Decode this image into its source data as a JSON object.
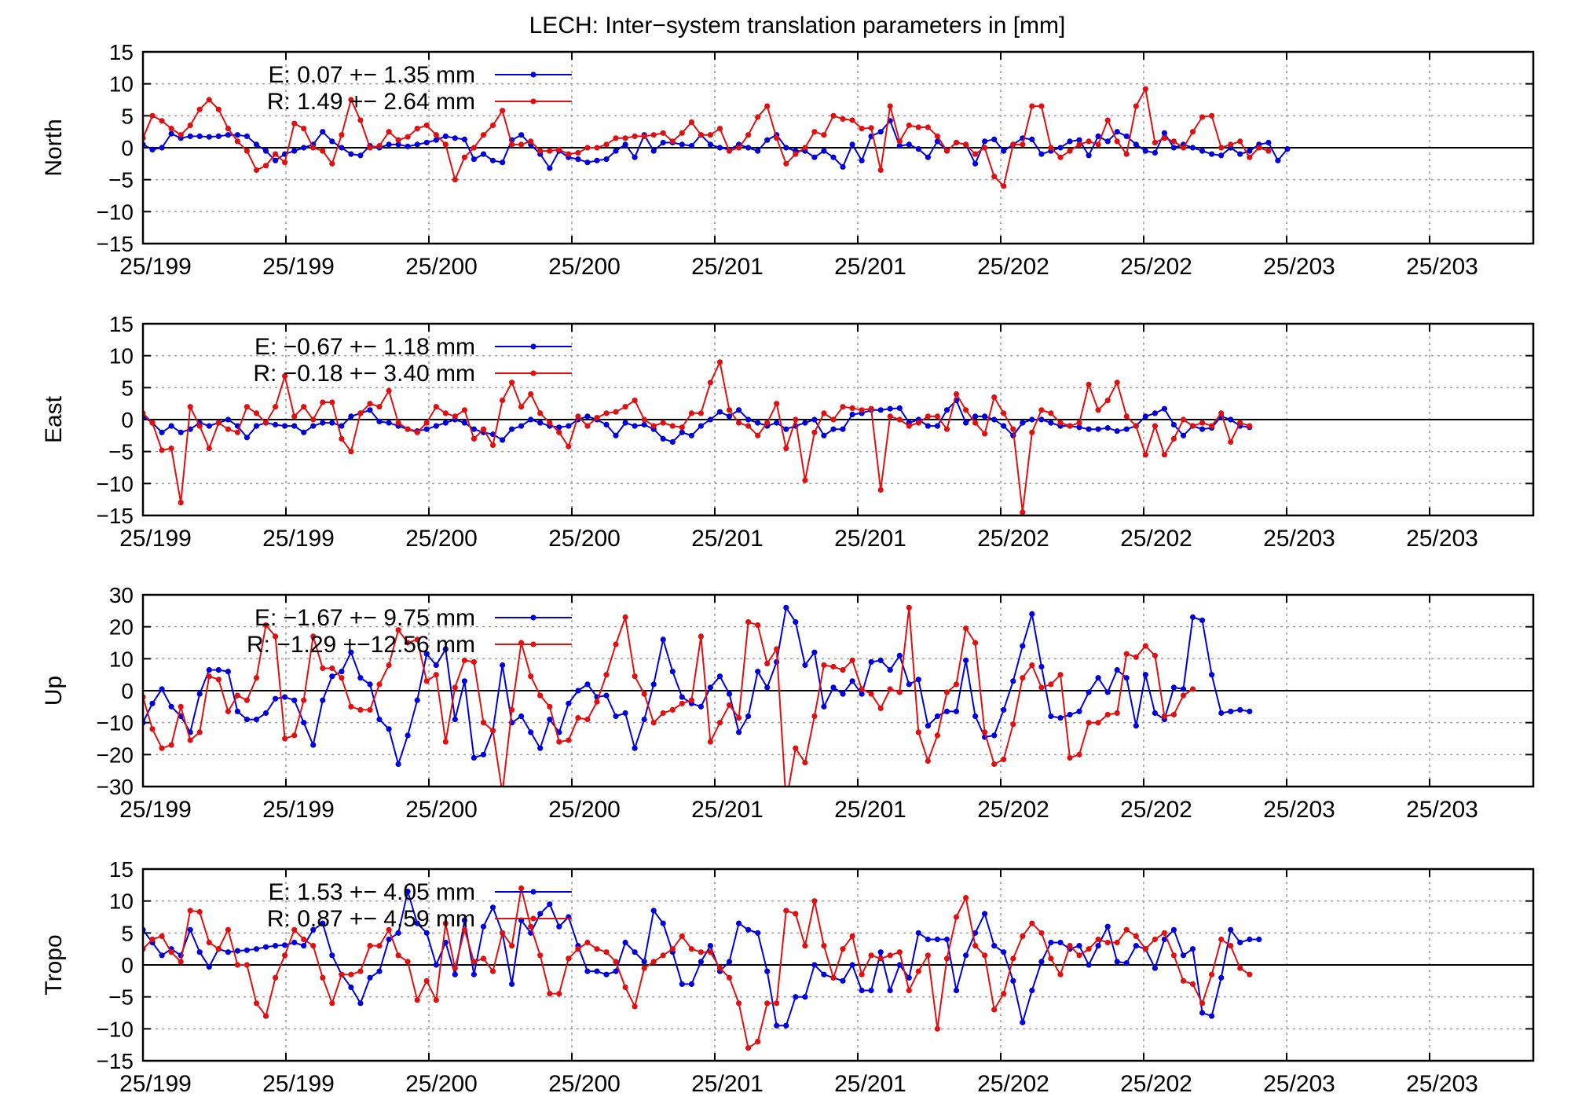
{
  "figure": {
    "title": "LECH: Inter−system translation parameters in [mm]"
  },
  "chart_data": [
    {
      "type": "line",
      "ylabel": "North",
      "ylim": [
        -15,
        15
      ],
      "yticks": [
        "15",
        "10",
        "5",
        "0",
        "−5",
        "−10",
        "−15"
      ],
      "xlim": [
        0,
        147
      ],
      "xtick_labels": [
        "25/199",
        "25/199",
        "25/200",
        "25/200",
        "25/201",
        "25/201",
        "25/202",
        "25/202",
        "25/203",
        "25/203"
      ],
      "grid": true,
      "legend": "top-left",
      "series": [
        {
          "name": "E:   0.07 +− 1.35 mm",
          "color": "#0000dd",
          "values": [
            0.5,
            -0.3,
            0,
            2.2,
            1.5,
            1.8,
            1.8,
            1.7,
            1.8,
            2,
            2,
            1.8,
            0.5,
            -0.5,
            -2,
            -1,
            -0.5,
            0,
            0.5,
            2.5,
            1,
            0,
            -1,
            -1.2,
            0.3,
            0,
            0.5,
            0.5,
            0.2,
            0.5,
            0.8,
            1.2,
            1.8,
            1.5,
            1.3,
            -1.8,
            -1,
            -2,
            -2.3,
            1.2,
            2,
            0.5,
            -1,
            -3.2,
            -0.5,
            -1.5,
            -1.8,
            -2.3,
            -2,
            -1.8,
            -0.5,
            0.5,
            -1.5,
            2,
            -0.5,
            0.8,
            0.8,
            0.5,
            0.3,
            2,
            0.5,
            0,
            -0.3,
            0.5,
            0,
            -0.5,
            1.2,
            2,
            0,
            -0.5,
            -0.5,
            -1.5,
            -0.5,
            -1.5,
            -3,
            0.5,
            -2,
            1.8,
            2.5,
            4.2,
            0.3,
            0.5,
            -0.2,
            -1.5,
            1,
            -0.5,
            0.8,
            0.5,
            -2.5,
            1,
            1.3,
            -0.5,
            0.5,
            1.5,
            1.3,
            -1,
            -0.5,
            0,
            1,
            1.2,
            -1.2,
            1.8,
            1,
            2.5,
            1.8,
            0.5,
            -0.5,
            -0.8,
            2.3,
            0,
            0.5,
            0,
            -0.5,
            -1,
            -1.2,
            0,
            -1,
            -0.5,
            0.5,
            0.8,
            -2,
            -0.2
          ]
        },
        {
          "name": "R:   1.49 +− 2.64 mm",
          "color": "#e01010",
          "values": [
            1.5,
            5,
            4.2,
            3,
            2,
            3.5,
            6,
            7.5,
            6,
            3,
            1,
            -0.5,
            -3.5,
            -2.8,
            -1,
            -2.3,
            3.8,
            3,
            0,
            -0.5,
            -2.5,
            2,
            7.5,
            4.3,
            0,
            0.3,
            2.5,
            1.2,
            1.7,
            3,
            3.5,
            2,
            0.5,
            -5,
            -1.5,
            0,
            2,
            3.5,
            5.8,
            0.5,
            0.5,
            1,
            -0.5,
            -0.5,
            -0.3,
            -1,
            -0.8,
            0,
            0,
            0.5,
            1.5,
            1.5,
            1.8,
            1.8,
            2,
            2.3,
            1,
            2.3,
            4,
            2,
            2,
            3,
            -0.5,
            0,
            2,
            4.8,
            6.5,
            1.5,
            -2.5,
            -1,
            0,
            2.5,
            2,
            5,
            4.5,
            4.3,
            3,
            3.1,
            -3.5,
            6.5,
            1,
            3.5,
            3.2,
            3.2,
            1.8,
            -0.5,
            0.8,
            0.5,
            -1,
            0,
            -4.5,
            -6,
            0.5,
            0.5,
            6.5,
            6.5,
            0,
            -1.5,
            -0.5,
            0.5,
            1,
            0.5,
            4.3,
            1,
            -1,
            6.5,
            9.2,
            0.8,
            1.5,
            1,
            0,
            2.5,
            4.8,
            5,
            0,
            0.5,
            1,
            -1.5,
            0,
            -0.5
          ]
        }
      ]
    },
    {
      "type": "line",
      "ylabel": "East",
      "ylim": [
        -15,
        15
      ],
      "yticks": [
        "15",
        "10",
        "5",
        "0",
        "−5",
        "−10",
        "−15"
      ],
      "xlim": [
        0,
        147
      ],
      "xtick_labels": [
        "25/199",
        "25/199",
        "25/200",
        "25/200",
        "25/201",
        "25/201",
        "25/202",
        "25/202",
        "25/203",
        "25/203"
      ],
      "grid": true,
      "legend": "top-left",
      "series": [
        {
          "name": "E:  −0.67 +− 1.18 mm",
          "color": "#0000dd",
          "values": [
            0.5,
            -0.5,
            -2,
            -1,
            -2,
            -1.5,
            -0.5,
            -1,
            -0.5,
            0,
            -1,
            -2.8,
            -1,
            -0.5,
            -0.8,
            -1,
            -1,
            -2,
            -1,
            -0.5,
            -0.5,
            -1,
            0.5,
            1,
            1.5,
            -0.3,
            -0.5,
            -1,
            -1.5,
            -1.8,
            -1.5,
            -1,
            -0.5,
            0,
            -0.5,
            -1.5,
            -2,
            -2.3,
            -3.2,
            -1.5,
            -1,
            0,
            -0.5,
            -1,
            -1.2,
            -1,
            0,
            0.5,
            0,
            -0.8,
            -2.5,
            -0.5,
            -1,
            -0.8,
            -1.5,
            -3,
            -3.5,
            -2,
            -2.5,
            -1,
            0,
            1.2,
            0.5,
            1.5,
            0,
            -0.5,
            -1,
            -0.5,
            -1.5,
            -1,
            -0.5,
            0,
            -2.5,
            -1.5,
            -1.5,
            0.8,
            1,
            1.5,
            1.5,
            1.7,
            1.8,
            -0.5,
            0,
            -1,
            -1,
            1.5,
            3,
            -0.5,
            0.5,
            0.5,
            0,
            -1,
            -2.5,
            -0.5,
            0,
            0,
            -0.5,
            -1,
            -1,
            -1.2,
            -1.5,
            -1.5,
            -1.3,
            -1.8,
            -1.5,
            -1,
            0.5,
            1,
            1.7,
            -0.8,
            -2.5,
            -1,
            -1.5,
            -1.3,
            0.5,
            0,
            -1,
            -1.2
          ]
        },
        {
          "name": "R:  −0.18 +− 3.40 mm",
          "color": "#e01010",
          "values": [
            1,
            -0.5,
            -4.8,
            -4.5,
            -13,
            2,
            -1,
            -4.5,
            -0.5,
            -1.5,
            -2,
            2,
            1,
            -0.5,
            2,
            6.8,
            0.5,
            2,
            0,
            2.7,
            2.7,
            -3,
            -5,
            1,
            2.5,
            2,
            4.5,
            -0.5,
            -1.5,
            -2,
            -0.5,
            2,
            1,
            0.5,
            1.5,
            -3,
            -1.5,
            -4,
            3,
            5.8,
            2,
            4,
            1,
            -0.5,
            -2,
            -4.2,
            0.5,
            -1,
            0.3,
            1,
            1.2,
            2,
            3,
            0,
            -1,
            -0.5,
            -1,
            -1.2,
            1,
            1,
            5.8,
            9,
            1.5,
            -0.5,
            -1,
            -2.5,
            -0.5,
            2.5,
            -4.5,
            0,
            -9.5,
            -2,
            1,
            0,
            2,
            1.8,
            1.5,
            1.7,
            -11,
            0.5,
            0,
            -1,
            -0.5,
            0.5,
            0.5,
            -1.5,
            4,
            1.5,
            -0.5,
            -2.2,
            3.5,
            1,
            -1.5,
            -14.5,
            -2,
            1.5,
            1,
            -0.5,
            -1,
            -0.5,
            5.5,
            1.5,
            3,
            5.8,
            0.5,
            -1,
            -5.5,
            -1,
            -5.5,
            -3,
            0,
            -1,
            -0.5,
            -1,
            1,
            -3.5,
            -0.5,
            -1
          ]
        }
      ]
    },
    {
      "type": "line",
      "ylabel": "Up",
      "ylim": [
        -30,
        30
      ],
      "yticks": [
        "30",
        "20",
        "10",
        "0",
        "−10",
        "−20",
        "−30"
      ],
      "xlim": [
        0,
        147
      ],
      "xtick_labels": [
        "25/199",
        "25/199",
        "25/200",
        "25/200",
        "25/201",
        "25/201",
        "25/202",
        "25/202",
        "25/203",
        "25/203"
      ],
      "grid": true,
      "legend": "top-left",
      "series": [
        {
          "name": "E:  −1.67 +− 9.75 mm",
          "color": "#0000dd",
          "values": [
            -10,
            -4,
            0.5,
            -5,
            -8,
            -13,
            -1,
            6.5,
            6.5,
            6,
            -6.5,
            -9,
            -9,
            -7,
            -2.5,
            -2,
            -3,
            -10,
            -17,
            -3,
            4.5,
            6,
            12,
            4,
            2,
            -9,
            -12,
            -23,
            -14,
            -3,
            11.5,
            8,
            13,
            -9,
            3,
            -21,
            -20,
            -12.5,
            8,
            -10,
            -8,
            -13,
            -18,
            -9,
            -13,
            -4,
            0,
            2,
            -2,
            -1.5,
            -8,
            -7,
            -18,
            -9,
            2,
            16,
            6,
            -2,
            -4,
            -5,
            1,
            4.5,
            -1,
            -13,
            -8,
            6,
            1,
            9,
            26,
            21.5,
            8,
            12,
            -5,
            1,
            -1,
            3,
            -1,
            9,
            9.5,
            6.5,
            11,
            2,
            3.5,
            -11,
            -8,
            -6.5,
            -6.5,
            9.5,
            -8,
            -14.5,
            -14,
            -6,
            3,
            14,
            24,
            7.5,
            -8,
            -8.5,
            -7.5,
            -6.5,
            -0.5,
            4,
            -0.5,
            6.5,
            4,
            -11,
            5,
            -7,
            -9,
            1,
            0.5,
            23,
            22,
            5,
            -7,
            -6.5,
            -6,
            -6.5
          ]
        },
        {
          "name": "R:  −1.29 +−12.56 mm",
          "color": "#e01010",
          "values": [
            -2,
            -12,
            -18,
            -17,
            -5,
            -15.5,
            -13,
            4.5,
            3.5,
            -6.5,
            -1.5,
            -3,
            4,
            20.5,
            17,
            -15,
            -14,
            -3,
            17,
            7,
            7,
            4,
            -5,
            -6,
            -6,
            2,
            8,
            19,
            15,
            16,
            3,
            5,
            -16,
            1,
            9.5,
            9,
            -10,
            -12.5,
            -32,
            -6,
            15,
            4.5,
            -1.5,
            -5,
            -16,
            -15.5,
            -8.5,
            -9,
            -3.5,
            5,
            14.5,
            23,
            4.5,
            -1,
            -10,
            -7,
            -6,
            -4,
            -3,
            17,
            -16,
            -10,
            -4.5,
            -8.5,
            21.5,
            20.5,
            8.5,
            13,
            -35,
            -18,
            -22.5,
            -8,
            8,
            7.5,
            6.5,
            9.5,
            0.5,
            -1,
            -5.5,
            0.5,
            -0.5,
            26,
            -13,
            -22,
            -14,
            -0.5,
            2,
            19.5,
            15,
            -13,
            -23,
            -21.5,
            -10.5,
            4,
            8,
            1,
            2,
            5,
            -21,
            -20,
            -10,
            -10,
            -7.5,
            -7,
            11.5,
            10.5,
            14,
            11,
            -8,
            -7.5,
            -1.5,
            0.5
          ]
        }
      ]
    },
    {
      "type": "line",
      "ylabel": "Tropo",
      "ylim": [
        -15,
        15
      ],
      "yticks": [
        "15",
        "10",
        "5",
        "0",
        "−5",
        "−10",
        "−15"
      ],
      "xlim": [
        0,
        147
      ],
      "xtick_labels": [
        "25/199",
        "25/199",
        "25/200",
        "25/200",
        "25/201",
        "25/201",
        "25/202",
        "25/202",
        "25/203",
        "25/203"
      ],
      "grid": true,
      "legend": "top-left",
      "series": [
        {
          "name": "E:   1.53 +− 4.05 mm",
          "color": "#0000dd",
          "values": [
            5.5,
            3.5,
            1.5,
            2.5,
            1.5,
            5.5,
            2,
            -0.3,
            2.5,
            2,
            2.2,
            2.3,
            2.5,
            2.8,
            3,
            3.1,
            3.5,
            3,
            5.5,
            6.5,
            1.5,
            -1.5,
            -3.5,
            -6,
            -2,
            -1,
            4,
            5,
            11.5,
            6.5,
            5,
            0,
            3.5,
            -1.5,
            7,
            -1.5,
            6,
            9,
            5,
            -3,
            7,
            5,
            8,
            9.5,
            6,
            7.5,
            3,
            -1,
            -1,
            -1.5,
            -1,
            3.5,
            2,
            0.5,
            8.5,
            6.5,
            2,
            -3,
            -3,
            0.5,
            3,
            -1,
            0.5,
            6.5,
            5.5,
            5,
            -1,
            -9.5,
            -9.5,
            -5,
            -5,
            0,
            -1.5,
            -2,
            -2.5,
            0,
            -4,
            -4,
            2,
            -4,
            0,
            -2,
            5,
            4,
            4,
            4,
            -4,
            1.5,
            5,
            8,
            3,
            2,
            -2.5,
            -9,
            -4,
            0.5,
            3.5,
            3.5,
            2.5,
            3,
            0,
            3,
            6,
            0.5,
            0.3,
            3,
            2.5,
            -0.5,
            4,
            5.5,
            1.5,
            2.5,
            -7.5,
            -8,
            -2,
            5.5,
            3.5,
            4,
            4
          ]
        },
        {
          "name": "R:   0.87 +− 4.59 mm",
          "color": "#e01010",
          "values": [
            2.5,
            4,
            4.5,
            2,
            0.5,
            8.5,
            8.3,
            3.5,
            2.5,
            5.5,
            0,
            0,
            -6,
            -8,
            -2,
            1.5,
            5.5,
            4,
            3,
            -2,
            -6,
            -1.5,
            -1.5,
            -1,
            3,
            3,
            5.5,
            1.5,
            0.5,
            -5.5,
            -2.5,
            -5.5,
            6.5,
            -0.5,
            5.5,
            0.5,
            1,
            -1,
            5,
            3,
            12,
            6,
            1.5,
            -4.5,
            -4.5,
            1,
            2.5,
            3.5,
            2.5,
            2,
            0.5,
            -3.5,
            -6.5,
            -0.5,
            0.5,
            1.5,
            2.5,
            4.5,
            2.5,
            2,
            2,
            -0.5,
            -2,
            -6,
            -13,
            -12,
            -6,
            -6,
            8.5,
            8,
            3,
            10,
            3,
            -2,
            2.5,
            4.5,
            -1.5,
            1.5,
            1,
            1.5,
            2,
            -4,
            -1,
            1.5,
            -10,
            1,
            7.5,
            10.5,
            3,
            1.5,
            -7,
            -4.5,
            1,
            4.5,
            6.5,
            5,
            1,
            -1.5,
            3,
            1.5,
            2.5,
            4,
            3.5,
            3.5,
            5.5,
            4.5,
            2.5,
            4,
            5,
            1.5,
            -2.5,
            -3,
            -6,
            -1.5,
            4,
            3,
            -0.5,
            -1.5
          ]
        }
      ]
    }
  ]
}
